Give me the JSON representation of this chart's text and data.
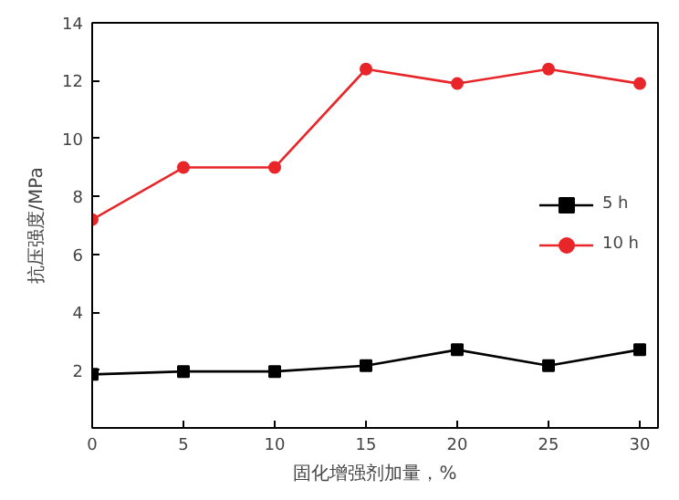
{
  "chart_data": {
    "type": "line",
    "xlabel": "固化增强剂加量，%",
    "ylabel": "抗压强度/MPa",
    "x": [
      0,
      5,
      10,
      15,
      20,
      25,
      30
    ],
    "series": [
      {
        "name": "5 h",
        "color": "#000000",
        "marker": "square",
        "values": [
          1.85,
          1.95,
          1.95,
          2.15,
          2.7,
          2.15,
          2.7
        ]
      },
      {
        "name": "10 h",
        "color": "#e8262a",
        "marker": "circle",
        "values": [
          7.2,
          9.0,
          9.0,
          12.4,
          11.9,
          12.4,
          11.9
        ]
      }
    ],
    "xlim": [
      0,
      31
    ],
    "ylim": [
      0,
      14
    ],
    "xticks": [
      0,
      5,
      10,
      15,
      20,
      25,
      30
    ],
    "yticks": [
      {
        "value": 0,
        "label": null
      },
      2,
      4,
      6,
      8,
      10,
      12,
      14
    ],
    "grid": false,
    "legend": "right",
    "line_style": "solid"
  }
}
